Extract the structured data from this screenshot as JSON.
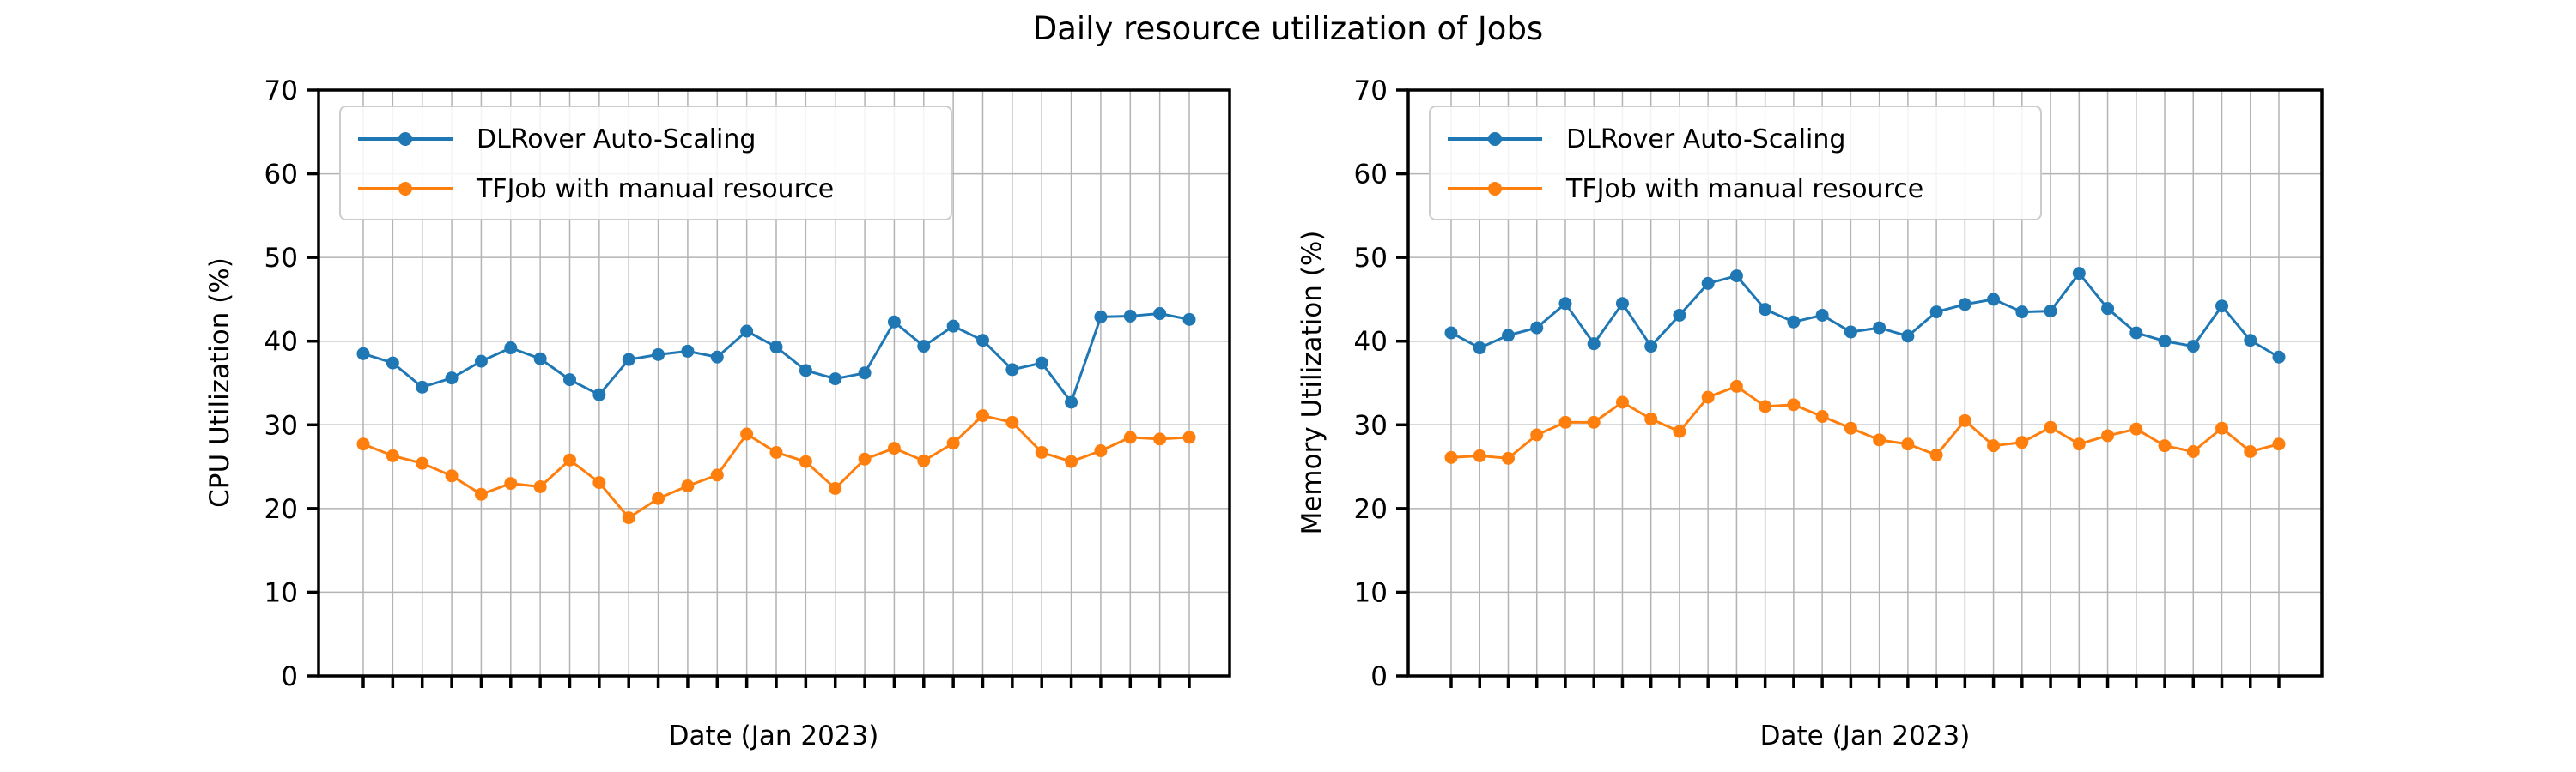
{
  "figure": {
    "title": "Daily resource utilization of Jobs"
  },
  "chart_data": [
    {
      "type": "line",
      "panel": "left",
      "xlabel": "Date (Jan 2023)",
      "ylabel": "CPU Utilization (%)",
      "ylim": [
        0,
        70
      ],
      "yticks": [
        0,
        10,
        20,
        30,
        40,
        50,
        60,
        70
      ],
      "x_tick_labels": "none (one unlabeled tick per day)",
      "grid": true,
      "legend_position": "upper left",
      "series": [
        {
          "name": "DLRover Auto-Scaling",
          "color": "#1f77b4",
          "values": [
            38.5,
            37.4,
            34.5,
            35.6,
            37.6,
            39.2,
            37.9,
            35.4,
            33.6,
            37.8,
            38.4,
            38.8,
            38.1,
            41.2,
            39.3,
            36.5,
            35.5,
            36.2,
            42.3,
            39.4,
            41.8,
            40.1,
            36.6,
            37.4,
            32.7,
            42.9,
            43.0,
            43.3,
            42.6
          ]
        },
        {
          "name": "TFJob with manual resource",
          "color": "#ff7f0e",
          "values": [
            27.7,
            26.3,
            25.4,
            23.9,
            21.7,
            23.0,
            22.6,
            25.8,
            23.1,
            18.9,
            21.2,
            22.7,
            24.0,
            28.9,
            26.7,
            25.6,
            22.4,
            25.9,
            27.2,
            25.7,
            27.8,
            31.1,
            30.3,
            26.7,
            25.6,
            26.9,
            28.5,
            28.3,
            28.5
          ]
        }
      ]
    },
    {
      "type": "line",
      "panel": "right",
      "xlabel": "Date (Jan 2023)",
      "ylabel": "Memory Utilization (%)",
      "ylim": [
        0,
        70
      ],
      "yticks": [
        0,
        10,
        20,
        30,
        40,
        50,
        60,
        70
      ],
      "x_tick_labels": "none (one unlabeled tick per day)",
      "grid": true,
      "legend_position": "upper left",
      "series": [
        {
          "name": "DLRover Auto-Scaling",
          "color": "#1f77b4",
          "values": [
            41.0,
            39.2,
            40.7,
            41.6,
            44.5,
            39.7,
            44.5,
            39.4,
            43.1,
            46.9,
            47.8,
            43.8,
            42.3,
            43.1,
            41.1,
            41.6,
            40.6,
            43.5,
            44.4,
            45.0,
            43.5,
            43.6,
            48.1,
            43.9,
            41.0,
            40.0,
            39.4,
            44.2,
            40.1,
            38.1
          ]
        },
        {
          "name": "TFJob with manual resource",
          "color": "#ff7f0e",
          "values": [
            26.1,
            26.3,
            26.0,
            28.8,
            30.3,
            30.3,
            32.7,
            30.7,
            29.2,
            33.3,
            34.6,
            32.2,
            32.4,
            31.0,
            29.6,
            28.2,
            27.7,
            26.4,
            30.5,
            27.5,
            27.9,
            29.7,
            27.7,
            28.7,
            29.5,
            27.5,
            26.8,
            29.6,
            26.8,
            27.7
          ]
        }
      ]
    }
  ],
  "style": {
    "grid_color": "#b3b3b3",
    "spine_color": "#000000",
    "background": "#ffffff"
  }
}
